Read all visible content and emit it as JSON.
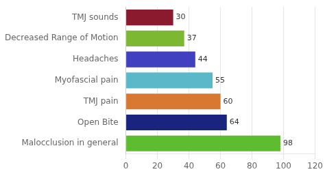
{
  "chart_data": {
    "type": "bar",
    "orientation": "horizontal",
    "categories": [
      "TMJ sounds",
      "Decreased Range of Motion",
      "Headaches",
      "Myofascial pain",
      "TMJ pain",
      "Open Bite",
      "Malocclusion in general"
    ],
    "values": [
      30,
      37,
      44,
      55,
      60,
      64,
      98
    ],
    "colors": [
      "#8B1A2E",
      "#7DB833",
      "#4040C0",
      "#5BB8C8",
      "#D97830",
      "#1A237E",
      "#5DBD2E"
    ],
    "xlim": [
      0,
      120
    ],
    "xticks": [
      0,
      20,
      40,
      60,
      80,
      100,
      120
    ],
    "grid": true,
    "data_labels": true
  }
}
